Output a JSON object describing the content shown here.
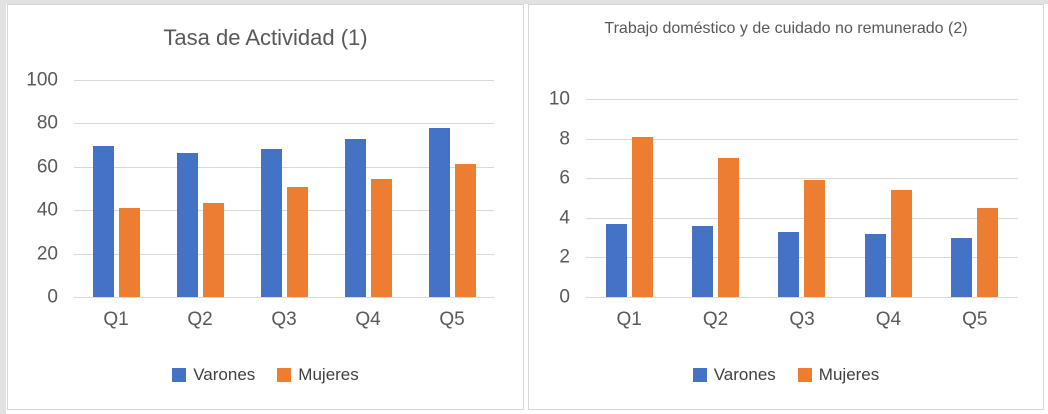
{
  "page": {
    "background": "#ffffff",
    "frame_color": "#e2e2e2",
    "card_border": "#d6d6d6",
    "gridline_color": "#d9d9d9",
    "axis_text_color": "#595959",
    "legend_text_color": "#404040",
    "title_text_color": "#595959"
  },
  "chart_data": [
    {
      "type": "bar",
      "title": "Tasa de Actividad (1)",
      "categories": [
        "Q1",
        "Q2",
        "Q3",
        "Q4",
        "Q5"
      ],
      "series": [
        {
          "name": "Varones",
          "color": "#4472C4",
          "values": [
            69.5,
            66.5,
            68,
            73,
            78
          ]
        },
        {
          "name": "Mujeres",
          "color": "#ED7D31",
          "values": [
            41,
            43.5,
            50.5,
            54.5,
            61.5
          ]
        }
      ],
      "xlabel": "",
      "ylabel": "",
      "ylim": [
        0,
        100
      ],
      "yticks": [
        0,
        20,
        40,
        60,
        80,
        100
      ],
      "grid": true,
      "legend_position": "bottom"
    },
    {
      "type": "bar",
      "title": "Trabajo doméstico y de cuidado no remunerado (2)",
      "categories": [
        "Q1",
        "Q2",
        "Q3",
        "Q4",
        "Q5"
      ],
      "series": [
        {
          "name": "Varones",
          "color": "#4472C4",
          "values": [
            3.7,
            3.6,
            3.3,
            3.2,
            3.0
          ]
        },
        {
          "name": "Mujeres",
          "color": "#ED7D31",
          "values": [
            8.1,
            7.0,
            5.9,
            5.4,
            4.5
          ]
        }
      ],
      "xlabel": "",
      "ylabel": "",
      "ylim": [
        0,
        10
      ],
      "yticks": [
        0,
        2,
        4,
        6,
        8,
        10
      ],
      "grid": true,
      "legend_position": "bottom"
    }
  ]
}
